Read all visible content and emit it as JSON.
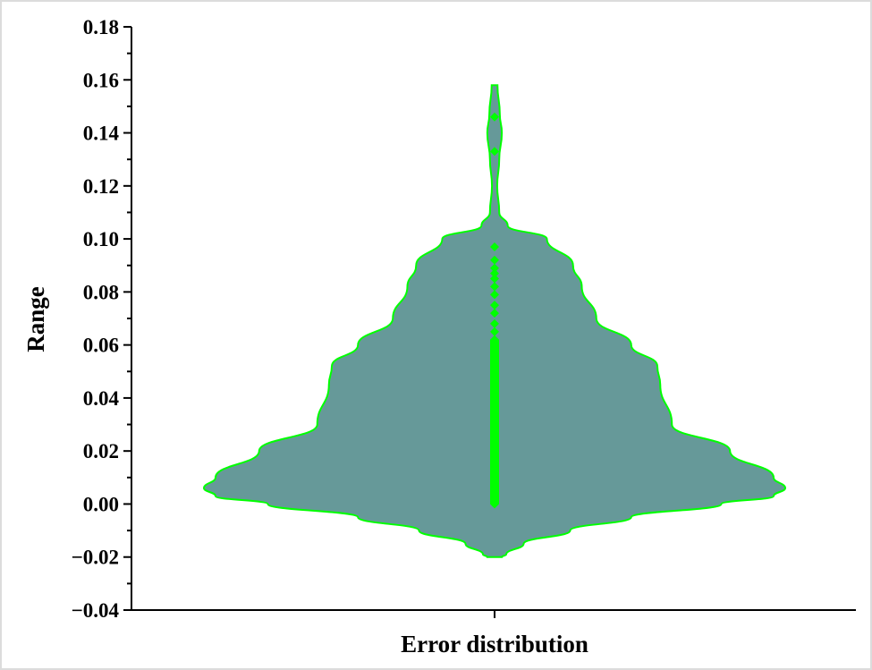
{
  "chart_data": {
    "type": "violin",
    "title": "",
    "xlabel": "Error distribution",
    "ylabel": "Range",
    "categories": [
      "Error distribution"
    ],
    "ylim": [
      -0.04,
      0.18
    ],
    "yticks": [
      "0.18",
      "0.16",
      "0.14",
      "0.12",
      "0.10",
      "0.08",
      "0.06",
      "0.04",
      "0.02",
      "0.00",
      "−0.02",
      "−0.04"
    ],
    "ytick_values": [
      0.18,
      0.16,
      0.14,
      0.12,
      0.1,
      0.08,
      0.06,
      0.04,
      0.02,
      0.0,
      -0.02,
      -0.04
    ],
    "grid": false,
    "legend": "none",
    "colors": {
      "fill": "#669999",
      "edge": "#00ff00",
      "points": "#00ff00"
    },
    "density_profile": [
      [
        0.158,
        0.01
      ],
      [
        0.147,
        0.018
      ],
      [
        0.14,
        0.025
      ],
      [
        0.13,
        0.016
      ],
      [
        0.12,
        0.009
      ],
      [
        0.11,
        0.016
      ],
      [
        0.105,
        0.045
      ],
      [
        0.1,
        0.18
      ],
      [
        0.09,
        0.27
      ],
      [
        0.082,
        0.3
      ],
      [
        0.07,
        0.35
      ],
      [
        0.06,
        0.47
      ],
      [
        0.052,
        0.56
      ],
      [
        0.045,
        0.57
      ],
      [
        0.03,
        0.61
      ],
      [
        0.02,
        0.81
      ],
      [
        0.01,
        0.96
      ],
      [
        0.006,
        1.0
      ],
      [
        0.003,
        0.96
      ],
      [
        0.0,
        0.78
      ],
      [
        -0.005,
        0.47
      ],
      [
        -0.01,
        0.26
      ],
      [
        -0.015,
        0.1
      ],
      [
        -0.019,
        0.04
      ],
      [
        -0.02,
        0.025
      ]
    ],
    "points": [
      0.0,
      0.002,
      0.004,
      0.006,
      0.008,
      0.01,
      0.012,
      0.014,
      0.016,
      0.018,
      0.02,
      0.022,
      0.024,
      0.026,
      0.028,
      0.03,
      0.032,
      0.034,
      0.036,
      0.038,
      0.04,
      0.042,
      0.044,
      0.046,
      0.048,
      0.05,
      0.052,
      0.054,
      0.056,
      0.058,
      0.06,
      0.062,
      0.065,
      0.068,
      0.072,
      0.075,
      0.079,
      0.082,
      0.085,
      0.087,
      0.089,
      0.092,
      0.097,
      0.133,
      0.146
    ]
  }
}
